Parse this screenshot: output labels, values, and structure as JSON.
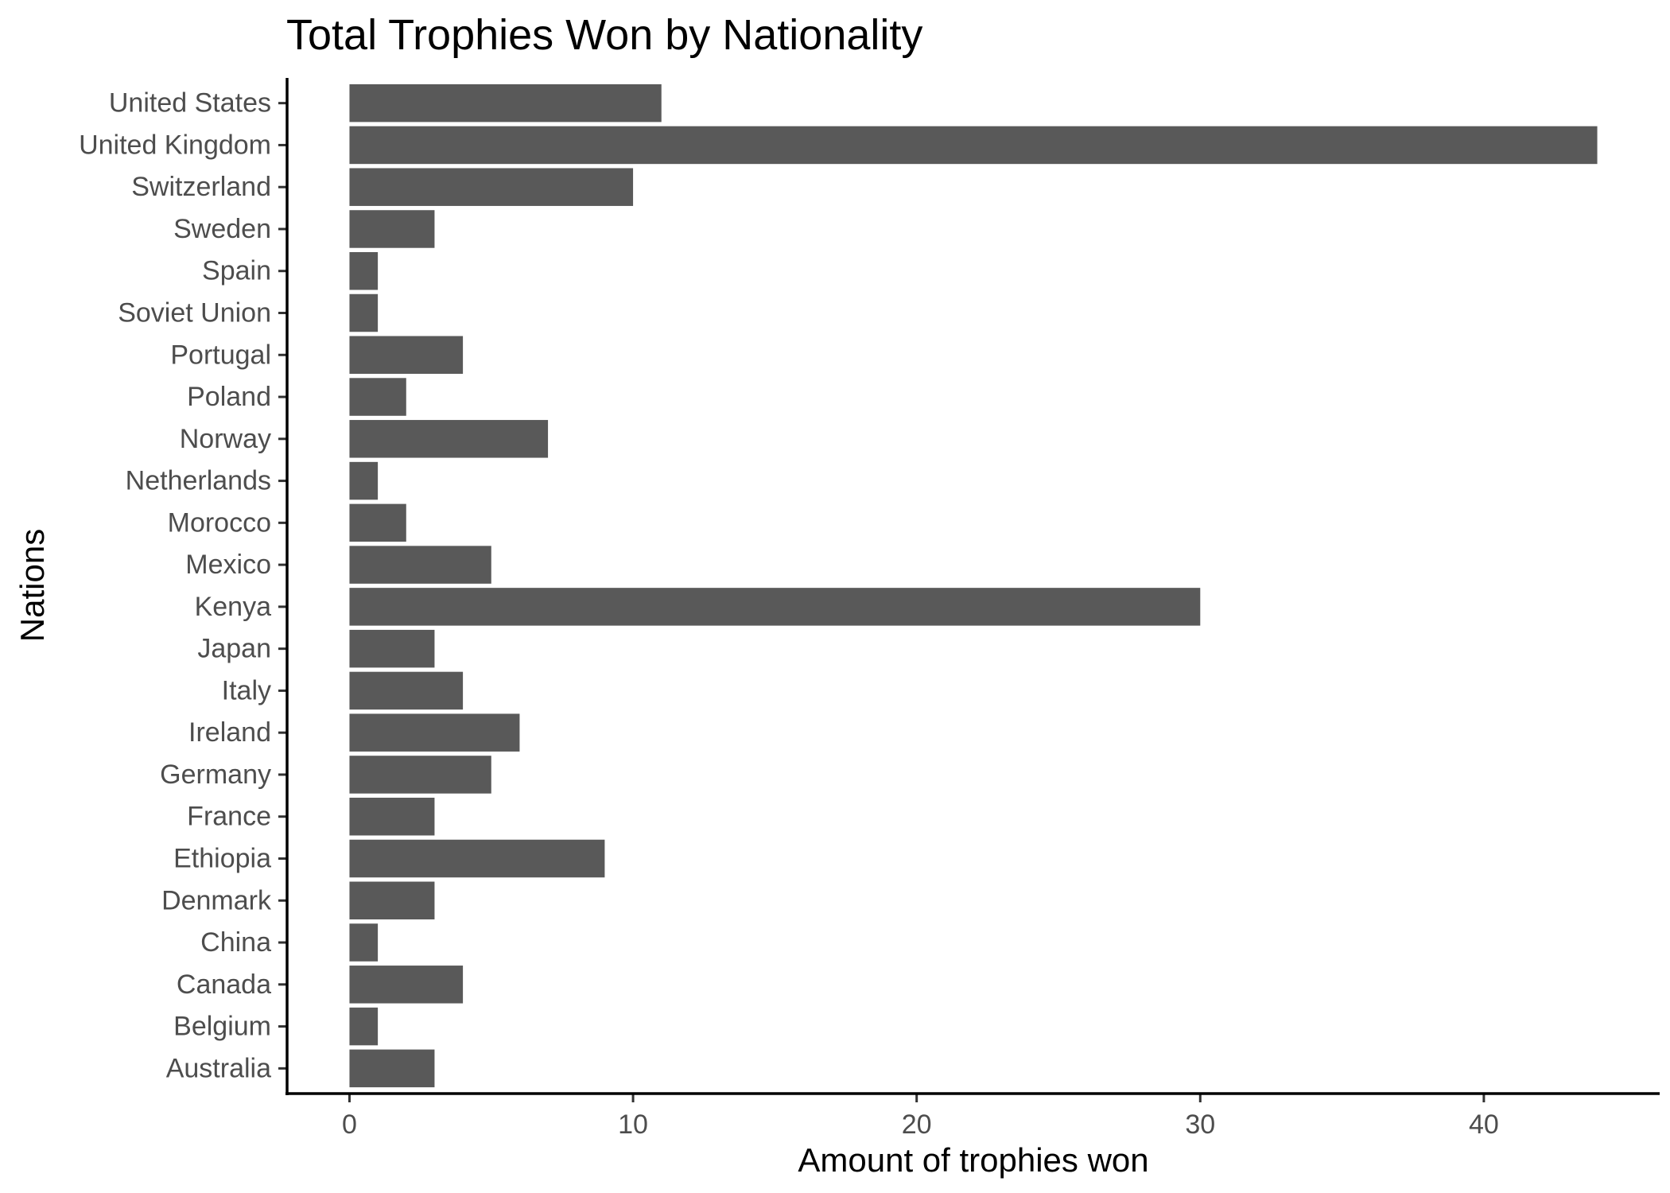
{
  "chart_data": {
    "type": "bar",
    "orientation": "horizontal",
    "title": "Total Trophies Won by Nationality",
    "xlabel": "Amount of trophies won",
    "ylabel": "Nations",
    "categories": [
      "United States",
      "United Kingdom",
      "Switzerland",
      "Sweden",
      "Spain",
      "Soviet Union",
      "Portugal",
      "Poland",
      "Norway",
      "Netherlands",
      "Morocco",
      "Mexico",
      "Kenya",
      "Japan",
      "Italy",
      "Ireland",
      "Germany",
      "France",
      "Ethiopia",
      "Denmark",
      "China",
      "Canada",
      "Belgium",
      "Australia"
    ],
    "values": [
      11,
      44,
      10,
      3,
      1,
      1,
      4,
      2,
      7,
      1,
      2,
      5,
      30,
      3,
      4,
      6,
      5,
      3,
      9,
      3,
      1,
      4,
      1,
      3
    ],
    "xlim": [
      -2.2,
      46.2
    ],
    "xticks": [
      0,
      10,
      20,
      30,
      40
    ],
    "bar_color": "#595959",
    "grid": false,
    "legend": "none"
  }
}
